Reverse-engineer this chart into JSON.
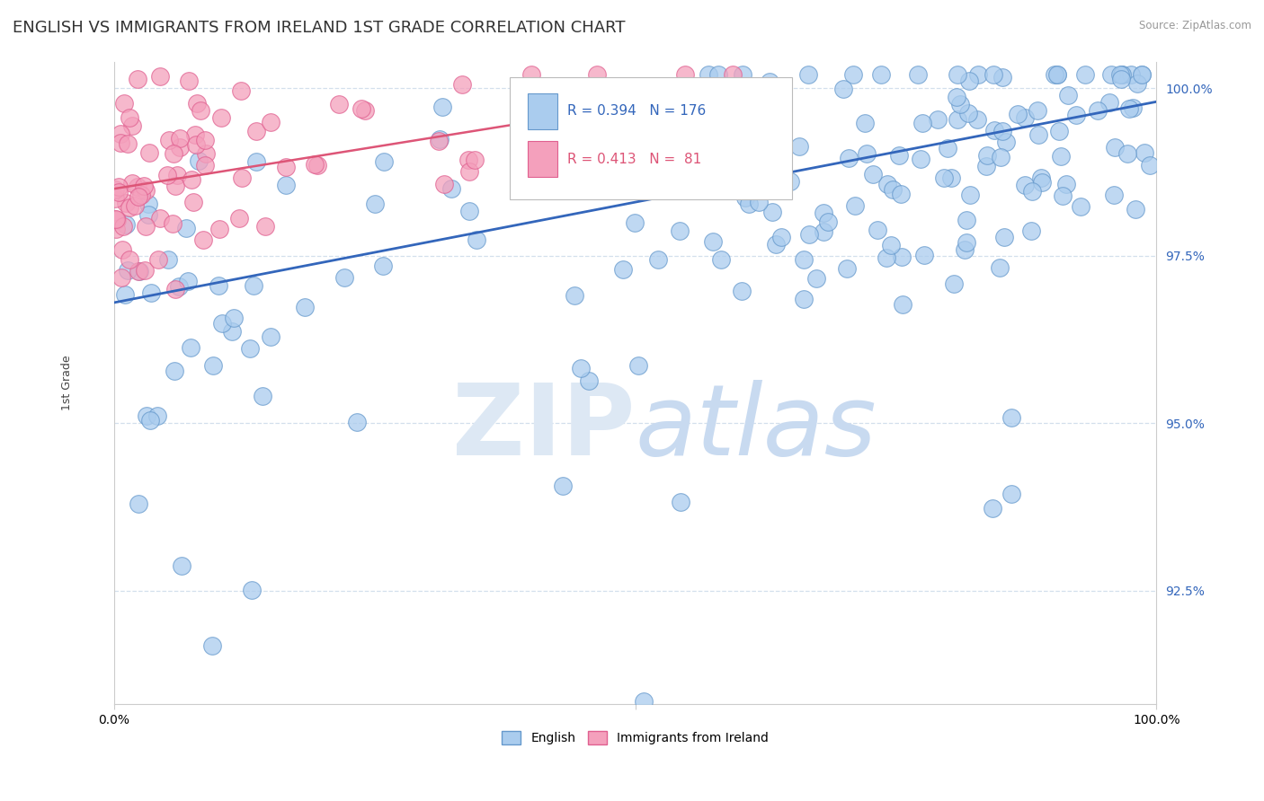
{
  "title": "ENGLISH VS IMMIGRANTS FROM IRELAND 1ST GRADE CORRELATION CHART",
  "source": "Source: ZipAtlas.com",
  "ylabel": "1st Grade",
  "xlim": [
    0,
    1
  ],
  "ylim": [
    0.908,
    1.004
  ],
  "yticks": [
    0.925,
    0.95,
    0.975,
    1.0
  ],
  "ytick_labels": [
    "92.5%",
    "95.0%",
    "97.5%",
    "100.0%"
  ],
  "english_R": 0.394,
  "english_N": 176,
  "ireland_R": 0.413,
  "ireland_N": 81,
  "english_color": "#aaccee",
  "ireland_color": "#f4a0bc",
  "english_edge_color": "#6699cc",
  "ireland_edge_color": "#e06090",
  "trendline_color": "#3366bb",
  "ireland_trendline_color": "#dd5577",
  "background_color": "#ffffff",
  "watermark_zip_color": "#dde8f4",
  "watermark_atlas_color": "#c8daf0",
  "legend_english_label": "English",
  "legend_ireland_label": "Immigrants from Ireland",
  "title_fontsize": 13,
  "axis_label_fontsize": 9,
  "tick_fontsize": 10,
  "legend_fontsize": 11
}
